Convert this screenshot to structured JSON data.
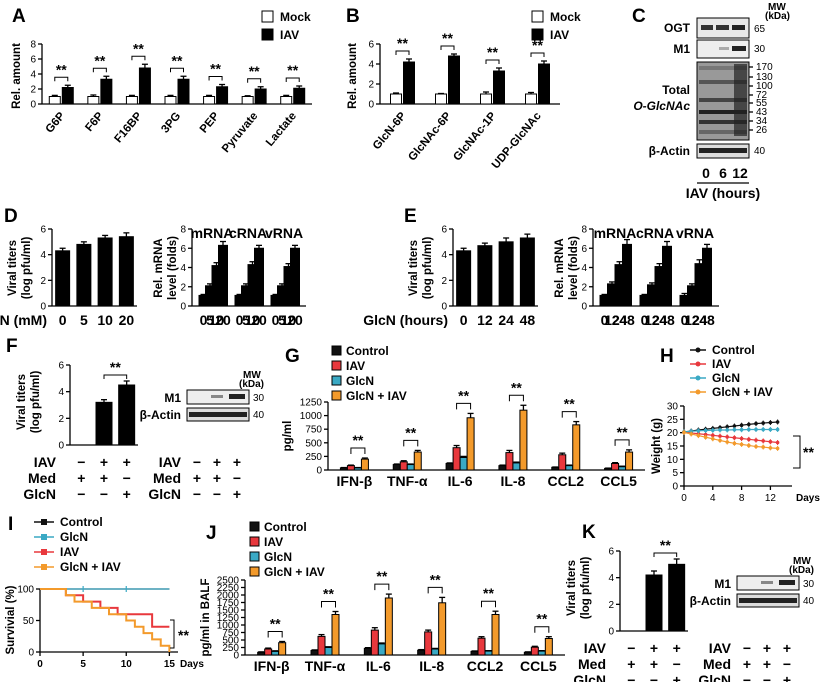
{
  "panels": {
    "A": {
      "label": "A",
      "ylabel": "Rel. amount",
      "yticks": [
        0,
        2,
        4,
        6,
        8
      ],
      "ymax": 8,
      "legend": [
        "Mock",
        "IAV"
      ],
      "categories": [
        "G6P",
        "F6P",
        "F16BP",
        "3PG",
        "PEP",
        "Pyruvate",
        "Lactate"
      ],
      "series": [
        {
          "name": "Mock",
          "values": [
            1,
            1,
            1,
            1,
            1,
            1,
            1
          ],
          "err": [
            0.15,
            0.2,
            0.15,
            0.15,
            0.15,
            0.1,
            0.15
          ]
        },
        {
          "name": "IAV",
          "values": [
            2.2,
            3.3,
            4.8,
            3.3,
            2.3,
            2.0,
            2.1
          ],
          "err": [
            0.3,
            0.4,
            0.5,
            0.4,
            0.3,
            0.3,
            0.3
          ]
        }
      ],
      "sig": "**"
    },
    "B": {
      "label": "B",
      "ylabel": "Rel. amount",
      "yticks": [
        0,
        2,
        4,
        6
      ],
      "ymax": 6,
      "legend": [
        "Mock",
        "IAV"
      ],
      "categories": [
        "GlcN-6P",
        "GlcNAc-6P",
        "GlcNAc-1P",
        "UDP-GlcNAc"
      ],
      "series": [
        {
          "name": "Mock",
          "values": [
            1,
            1,
            1,
            1
          ],
          "err": [
            0.1,
            0.05,
            0.2,
            0.15
          ]
        },
        {
          "name": "IAV",
          "values": [
            4.2,
            4.8,
            3.3,
            4.0
          ],
          "err": [
            0.3,
            0.2,
            0.3,
            0.3
          ]
        }
      ],
      "sig": "**"
    },
    "C": {
      "label": "C",
      "mw": "MW\n(kDa)",
      "mw_top": "MW",
      "mw_bot": "(kDa)",
      "bands": [
        {
          "name": "OGT",
          "mw": [
            "65"
          ]
        },
        {
          "name": "M1",
          "mw": [
            "30"
          ]
        },
        {
          "name_line1": "Total",
          "name_line2": "O-GlcNAc",
          "mw": [
            "170",
            "130",
            "100",
            "72",
            "55",
            "43",
            "34",
            "26"
          ]
        },
        {
          "name": "β-Actin",
          "mw": [
            "40"
          ]
        }
      ],
      "lanes": [
        "0",
        "6",
        "12"
      ],
      "xlabel": "IAV (hours)"
    },
    "D": {
      "label": "D",
      "titer": {
        "ylabel1": "Viral titers",
        "ylabel2": "(log pfu/ml)",
        "yticks": [
          0,
          2,
          4,
          6
        ],
        "ymax": 6,
        "values": [
          4.3,
          4.8,
          5.3,
          5.4
        ],
        "err": [
          0.2,
          0.2,
          0.2,
          0.3
        ]
      },
      "rna": {
        "ylabel1": "Rel. mRNA",
        "ylabel2": "level (folds)",
        "yticks": [
          0,
          2,
          4,
          6,
          8
        ],
        "ymax": 8,
        "titles": [
          "mRNA",
          "cRNA",
          "vRNA"
        ],
        "values": [
          [
            1.1,
            2.1,
            4.2,
            6.3
          ],
          [
            1.1,
            2.1,
            4.3,
            6.0
          ],
          [
            1.1,
            2.1,
            4.1,
            6.0
          ]
        ],
        "err": [
          [
            0.1,
            0.2,
            0.3,
            0.4
          ],
          [
            0.1,
            0.2,
            0.3,
            0.3
          ],
          [
            0.1,
            0.2,
            0.3,
            0.3
          ]
        ]
      },
      "xticks": [
        "0",
        "5",
        "10",
        "20"
      ],
      "xlabel": "GlcN (mM)"
    },
    "E": {
      "label": "E",
      "titer": {
        "ylabel1": "Viral titers",
        "ylabel2": "(log pfu/ml)",
        "yticks": [
          0,
          2,
          4,
          6
        ],
        "ymax": 6,
        "values": [
          4.3,
          4.7,
          5.0,
          5.3
        ],
        "err": [
          0.2,
          0.2,
          0.3,
          0.3
        ]
      },
      "rna": {
        "ylabel1": "Rel. mRNA",
        "ylabel2": "level (folds)",
        "yticks": [
          0,
          2,
          4,
          6,
          8
        ],
        "ymax": 8,
        "titles": [
          "mRNA",
          "cRNA",
          "vRNA"
        ],
        "values": [
          [
            1.1,
            2.3,
            4.3,
            6.4
          ],
          [
            1.1,
            2.2,
            4.1,
            6.2
          ],
          [
            1.1,
            2.1,
            4.4,
            6.0
          ]
        ],
        "err": [
          [
            0.1,
            0.2,
            0.3,
            0.5
          ],
          [
            0.1,
            0.2,
            0.3,
            0.5
          ],
          [
            0.2,
            0.2,
            0.4,
            0.4
          ]
        ]
      },
      "xticks": [
        "0",
        "12",
        "24",
        "48"
      ],
      "xlabel": "GlcN (hours)"
    },
    "F": {
      "label": "F",
      "ylabel1": "Viral titers",
      "ylabel2": "(log pfu/ml)",
      "yticks": [
        0,
        2,
        4,
        6
      ],
      "ymax": 6,
      "values": [
        0,
        3.2,
        4.5
      ],
      "err": [
        0,
        0.2,
        0.3
      ],
      "sig": "**",
      "rows": [
        {
          "name": "IAV",
          "marks": [
            "−",
            "+",
            "+"
          ]
        },
        {
          "name": "Med",
          "marks": [
            "+",
            "+",
            "−"
          ]
        },
        {
          "name": "GlcN",
          "marks": [
            "−",
            "−",
            "+"
          ]
        }
      ],
      "blot": {
        "mw_top": "MW",
        "mw_bot": "(kDa)",
        "bands": [
          {
            "name": "M1",
            "mw": "30"
          },
          {
            "name": "β-Actin",
            "mw": "40"
          }
        ]
      }
    },
    "G": {
      "label": "G",
      "ylabel": "pg/ml",
      "yticks": [
        0,
        250,
        500,
        750,
        1000,
        1250
      ],
      "ymax": 1250,
      "legend": [
        "Control",
        "IAV",
        "GlcN",
        "GlcN + IAV"
      ],
      "categories": [
        "IFN-β",
        "TNF-α",
        "IL-6",
        "IL-8",
        "CCL2",
        "CCL5"
      ],
      "values": [
        [
          40,
          100,
          120,
          80,
          50,
          30
        ],
        [
          80,
          150,
          410,
          320,
          280,
          120
        ],
        [
          40,
          100,
          230,
          130,
          80,
          60
        ],
        [
          200,
          330,
          960,
          1100,
          830,
          330
        ]
      ],
      "err": [
        [
          5,
          10,
          10,
          10,
          5,
          5
        ],
        [
          10,
          20,
          40,
          40,
          30,
          15
        ],
        [
          5,
          10,
          20,
          15,
          10,
          10
        ],
        [
          20,
          30,
          80,
          90,
          60,
          40
        ]
      ],
      "sig": "**"
    },
    "H": {
      "label": "H",
      "ylabel": "Weight (g)",
      "yticks": [
        0,
        5,
        10,
        15,
        20,
        25,
        30
      ],
      "ymax": 30,
      "xticks": [
        "0",
        "4",
        "8",
        "12"
      ],
      "xunit": "Days",
      "xmax": 15,
      "legend": [
        "Control",
        "IAV",
        "GlcN",
        "GlcN + IAV"
      ],
      "x": [
        0,
        1,
        2,
        3,
        4,
        5,
        6,
        7,
        8,
        9,
        10,
        11,
        12,
        13
      ],
      "series": [
        {
          "name": "Control",
          "values": [
            20.3,
            20.6,
            21.0,
            21.3,
            21.6,
            21.9,
            22.2,
            22.5,
            22.8,
            23.1,
            23.4,
            23.6,
            23.8,
            24.0
          ]
        },
        {
          "name": "IAV",
          "values": [
            20.2,
            19.9,
            19.6,
            19.3,
            19.0,
            18.7,
            18.4,
            18.1,
            17.8,
            17.5,
            17.2,
            16.9,
            16.6,
            16.3
          ]
        },
        {
          "name": "GlcN",
          "values": [
            20.3,
            20.5,
            20.7,
            20.8,
            20.9,
            21.0,
            21.0,
            21.1,
            21.1,
            21.2,
            21.2,
            21.2,
            21.2,
            21.2
          ]
        },
        {
          "name": "GlcN + IAV",
          "values": [
            20.1,
            19.5,
            18.9,
            18.3,
            17.7,
            17.1,
            16.5,
            16.0,
            15.6,
            15.2,
            14.8,
            14.6,
            14.3,
            14.1
          ]
        }
      ],
      "sig": "**"
    },
    "I": {
      "label": "I",
      "ylabel": "Survivial (%)",
      "yticks": [
        0,
        50,
        100
      ],
      "ymax": 100,
      "xticks": [
        "0",
        "5",
        "10",
        "15"
      ],
      "xunit": "Days",
      "xmax": 16,
      "legend": [
        "Control",
        "GlcN",
        "IAV",
        "GlcN + IAV"
      ],
      "series": [
        {
          "name": "Control",
          "steps": [
            [
              0,
              100
            ],
            [
              15,
              100
            ]
          ]
        },
        {
          "name": "GlcN",
          "steps": [
            [
              0,
              100
            ],
            [
              15,
              100
            ]
          ]
        },
        {
          "name": "IAV",
          "steps": [
            [
              0,
              100
            ],
            [
              3,
              100
            ],
            [
              3,
              90
            ],
            [
              5,
              90
            ],
            [
              5,
              80
            ],
            [
              7,
              80
            ],
            [
              7,
              70
            ],
            [
              9,
              70
            ],
            [
              9,
              60
            ],
            [
              13,
              60
            ],
            [
              13,
              40
            ],
            [
              15,
              40
            ]
          ]
        },
        {
          "name": "GlcN + IAV",
          "steps": [
            [
              0,
              100
            ],
            [
              3,
              100
            ],
            [
              3,
              90
            ],
            [
              4,
              90
            ],
            [
              4,
              80
            ],
            [
              6,
              80
            ],
            [
              6,
              70
            ],
            [
              8,
              70
            ],
            [
              8,
              60
            ],
            [
              10,
              60
            ],
            [
              10,
              50
            ],
            [
              11,
              50
            ],
            [
              11,
              40
            ],
            [
              12,
              40
            ],
            [
              12,
              30
            ],
            [
              13,
              30
            ],
            [
              13,
              20
            ],
            [
              14,
              20
            ],
            [
              14,
              10
            ],
            [
              15,
              10
            ],
            [
              15,
              0
            ]
          ]
        }
      ],
      "sig": "**"
    },
    "J": {
      "label": "J",
      "ylabel": "pg/ml in BALF",
      "yticks": [
        0,
        250,
        500,
        750,
        1000,
        1250,
        1500,
        1750,
        2000,
        2250,
        2500
      ],
      "ymax": 2500,
      "legend": [
        "Control",
        "IAV",
        "GlcN",
        "GlcN + IAV"
      ],
      "categories": [
        "IFN-β",
        "TNF-α",
        "IL-6",
        "IL-8",
        "CCL2",
        "CCL5"
      ],
      "values": [
        [
          90,
          150,
          220,
          160,
          120,
          90
        ],
        [
          200,
          620,
          830,
          770,
          560,
          260
        ],
        [
          120,
          250,
          370,
          200,
          130,
          130
        ],
        [
          410,
          1350,
          1900,
          1740,
          1350,
          550
        ]
      ],
      "err": [
        [
          15,
          20,
          25,
          20,
          15,
          15
        ],
        [
          30,
          60,
          80,
          60,
          50,
          30
        ],
        [
          20,
          25,
          30,
          20,
          15,
          15
        ],
        [
          40,
          100,
          130,
          180,
          110,
          60
        ]
      ],
      "sig": "**"
    },
    "K": {
      "label": "K",
      "ylabel1": "Viral titers",
      "ylabel2": "(log pfu/ml)",
      "yticks": [
        0,
        2,
        4,
        6
      ],
      "ymax": 6,
      "values": [
        0,
        4.2,
        5.0
      ],
      "err": [
        0,
        0.3,
        0.4
      ],
      "sig": "**",
      "rows": [
        {
          "name": "IAV",
          "marks": [
            "−",
            "+",
            "+"
          ]
        },
        {
          "name": "Med",
          "marks": [
            "+",
            "+",
            "−"
          ]
        },
        {
          "name": "GlcN",
          "marks": [
            "−",
            "−",
            "+"
          ]
        }
      ],
      "blot": {
        "mw_top": "MW",
        "mw_bot": "(kDa)",
        "bands": [
          {
            "name": "M1",
            "mw": "30"
          },
          {
            "name": "β-Actin",
            "mw": "40"
          }
        ]
      }
    }
  },
  "colors": {
    "mock": "#ffffff",
    "iav_bw": "#000000",
    "control": "#111111",
    "iav": "#e8383d",
    "glcn": "#3aa9c4",
    "combo": "#f39a2b"
  }
}
